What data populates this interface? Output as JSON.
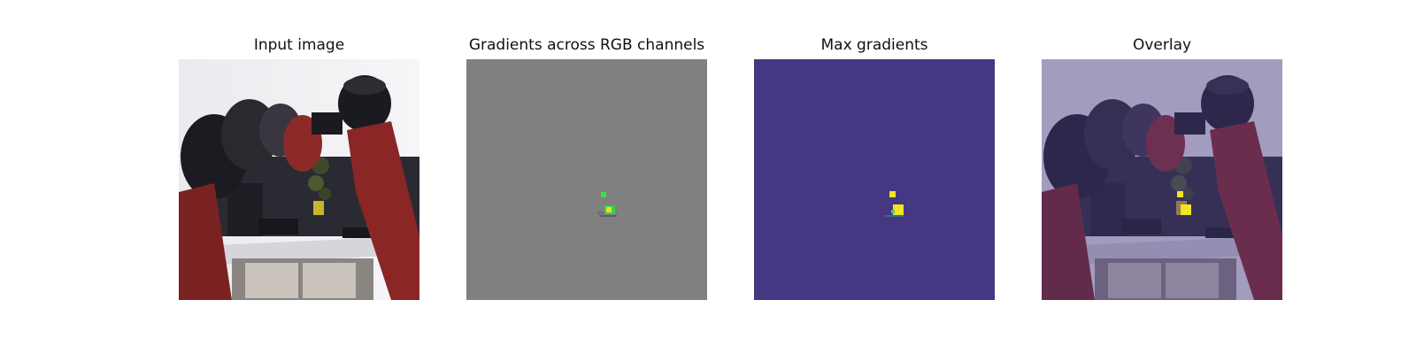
{
  "figure": {
    "panels": [
      {
        "title": "Input image",
        "image": "robot-arm-photo"
      },
      {
        "title": "Gradients across RGB channels",
        "image": "rgb-gradient-map"
      },
      {
        "title": "Max gradients",
        "image": "max-gradient-heatmap"
      },
      {
        "title": "Overlay",
        "image": "heatmap-overlay-photo"
      }
    ]
  },
  "colors": {
    "gradient_background": "#808080",
    "heatmap_background": "#453781",
    "heatmap_highlight": "#f0e51f",
    "heatmap_mid": "#5ec962",
    "robot_red": "#8c2a2a"
  }
}
